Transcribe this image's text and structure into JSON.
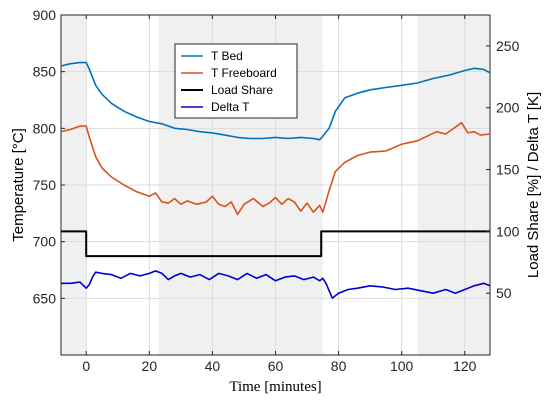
{
  "chart_data": {
    "type": "line",
    "xlabel": "Time [minutes]",
    "ylabel_left": "Temperature [°C]",
    "ylabel_right": "Load Share [%] / Delta T [K]",
    "xlim": [
      -8,
      128
    ],
    "ylim_left": [
      600,
      900
    ],
    "ylim_right": [
      0,
      275
    ],
    "x_ticks": [
      0,
      20,
      40,
      60,
      80,
      100,
      120
    ],
    "y_left_ticks": [
      650,
      700,
      750,
      800,
      850,
      900
    ],
    "y_right_ticks": [
      50,
      100,
      150,
      200,
      250
    ],
    "grid": true,
    "legend_position": "upper-center",
    "shaded_intervals": [
      [
        -8,
        0
      ],
      [
        23,
        75
      ],
      [
        105,
        128
      ]
    ],
    "series": [
      {
        "name": "T Bed",
        "axis": "left",
        "color": "#0072BD",
        "x": [
          -8,
          -5,
          -2,
          0,
          1,
          3,
          5,
          8,
          12,
          16,
          20,
          24,
          28,
          32,
          36,
          40,
          44,
          48,
          52,
          56,
          60,
          64,
          68,
          72,
          74,
          75,
          77,
          79,
          82,
          86,
          90,
          95,
          100,
          105,
          110,
          115,
          120,
          123,
          126,
          128
        ],
        "y": [
          855,
          857,
          858,
          858,
          852,
          838,
          830,
          822,
          815,
          810,
          806,
          804,
          800,
          799,
          797,
          796,
          794,
          792,
          791,
          791,
          792,
          791,
          792,
          791,
          790,
          793,
          800,
          815,
          827,
          831,
          834,
          836,
          838,
          840,
          844,
          847,
          851,
          853,
          852,
          849
        ]
      },
      {
        "name": "T Freeboard",
        "axis": "left",
        "color": "#D95319",
        "x": [
          -8,
          -5,
          -2,
          0,
          1,
          3,
          5,
          8,
          12,
          16,
          20,
          22,
          24,
          26,
          28,
          30,
          32,
          35,
          38,
          40,
          42,
          44,
          46,
          48,
          50,
          53,
          56,
          58,
          60,
          62,
          64,
          66,
          68,
          70,
          72,
          74,
          75,
          77,
          79,
          82,
          86,
          90,
          95,
          100,
          105,
          108,
          111,
          114,
          117,
          119,
          121,
          123,
          125,
          128
        ],
        "y": [
          797,
          799,
          802,
          802,
          792,
          775,
          765,
          757,
          750,
          744,
          740,
          743,
          735,
          734,
          738,
          733,
          736,
          733,
          735,
          740,
          733,
          731,
          735,
          724,
          733,
          738,
          731,
          734,
          739,
          733,
          738,
          735,
          727,
          734,
          726,
          732,
          726,
          745,
          762,
          770,
          776,
          779,
          780,
          786,
          789,
          793,
          797,
          795,
          801,
          805,
          796,
          797,
          794,
          795
        ]
      },
      {
        "name": "Load Share",
        "axis": "right",
        "color": "#000000",
        "x": [
          -8,
          0,
          0,
          74.5,
          74.5,
          128
        ],
        "y": [
          100,
          100,
          80,
          80,
          100,
          100
        ]
      },
      {
        "name": "Delta T",
        "axis": "right",
        "color": "#0000CD",
        "x": [
          -8,
          -5,
          -2,
          0,
          1,
          2,
          3,
          5,
          8,
          11,
          14,
          17,
          20,
          22,
          24,
          26,
          28,
          30,
          33,
          36,
          39,
          42,
          45,
          48,
          51,
          54,
          57,
          60,
          63,
          66,
          69,
          72,
          74,
          75,
          76,
          77,
          78,
          80,
          83,
          86,
          90,
          94,
          98,
          102,
          106,
          110,
          114,
          117,
          120,
          123,
          126,
          128
        ],
        "y": [
          58,
          58,
          59,
          54,
          57,
          63,
          67,
          66,
          65,
          62,
          66,
          64,
          66,
          68,
          66,
          61,
          64,
          66,
          63,
          65,
          61,
          66,
          64,
          61,
          66,
          62,
          65,
          60,
          63,
          64,
          61,
          63,
          60,
          62,
          58,
          52,
          46,
          50,
          53,
          54,
          56,
          55,
          53,
          54,
          52,
          50,
          53,
          50,
          53,
          56,
          58,
          56
        ]
      }
    ]
  }
}
